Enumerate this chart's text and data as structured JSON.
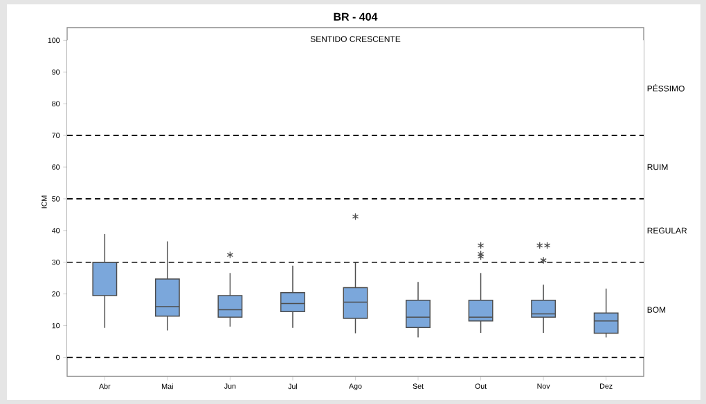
{
  "chart_data": {
    "type": "box",
    "title": "BR - 404",
    "subtitle": "SENTIDO CRESCENTE",
    "ylabel": "ICM",
    "categories": [
      "Abr",
      "Mai",
      "Jun",
      "Jul",
      "Ago",
      "Set",
      "Out",
      "Nov",
      "Dez"
    ],
    "color": "#7ba7db",
    "boxes": [
      {
        "low": 9.3,
        "q1": 19.5,
        "median": 30,
        "q3": 30,
        "high": 38.9
      },
      {
        "low": 8.5,
        "q1": 13.0,
        "median": 16.0,
        "q3": 24.7,
        "high": 36.6
      },
      {
        "low": 9.7,
        "q1": 12.7,
        "median": 15.0,
        "q3": 19.5,
        "high": 26.6,
        "outliers": [
          32.3
        ]
      },
      {
        "low": 9.3,
        "q1": 14.4,
        "median": 17.0,
        "q3": 20.4,
        "high": 28.9
      },
      {
        "low": 7.6,
        "q1": 12.3,
        "median": 17.4,
        "q3": 22.0,
        "high": 30.0,
        "outliers": [
          44.4
        ]
      },
      {
        "low": 6.3,
        "q1": 9.4,
        "median": 12.7,
        "q3": 18.0,
        "high": 23.8
      },
      {
        "low": 7.7,
        "q1": 11.5,
        "median": 12.7,
        "q3": 18.0,
        "high": 26.6,
        "outliers": [
          35.3,
          32.6,
          31.8
        ]
      },
      {
        "low": 7.7,
        "q1": 12.7,
        "median": 13.7,
        "q3": 18.0,
        "high": 22.9,
        "outliers": [
          35.3,
          35.3,
          30.6
        ]
      },
      {
        "low": 6.3,
        "q1": 7.6,
        "median": 11.5,
        "q3": 14.0,
        "high": 21.7
      }
    ],
    "marker": "star",
    "ylim": [
      -6,
      104
    ],
    "yticks": [
      0,
      10,
      20,
      30,
      40,
      50,
      60,
      70,
      80,
      90,
      100
    ],
    "ref_lines": [
      {
        "axis": "y",
        "value": 0,
        "line_style": "dashed",
        "color": "#000000"
      },
      {
        "axis": "y",
        "value": 30,
        "line_style": "dashed",
        "color": "#000000"
      },
      {
        "axis": "y",
        "value": 50,
        "line_style": "dashed",
        "color": "#000000"
      },
      {
        "axis": "y",
        "value": 70,
        "line_style": "dashed",
        "color": "#000000"
      }
    ],
    "bands": [
      {
        "axis": "y",
        "from": 70,
        "to": 100,
        "label": "PÉSSIMO",
        "color": "#ffffff"
      },
      {
        "axis": "y",
        "from": 50,
        "to": 70,
        "label": "RUIM",
        "color": "#ffffff"
      },
      {
        "axis": "y",
        "from": 30,
        "to": 50,
        "label": "REGULAR",
        "color": "#ffffff"
      },
      {
        "axis": "y",
        "from": 0,
        "to": 30,
        "label": "BOM",
        "color": "#ffffff"
      }
    ]
  }
}
